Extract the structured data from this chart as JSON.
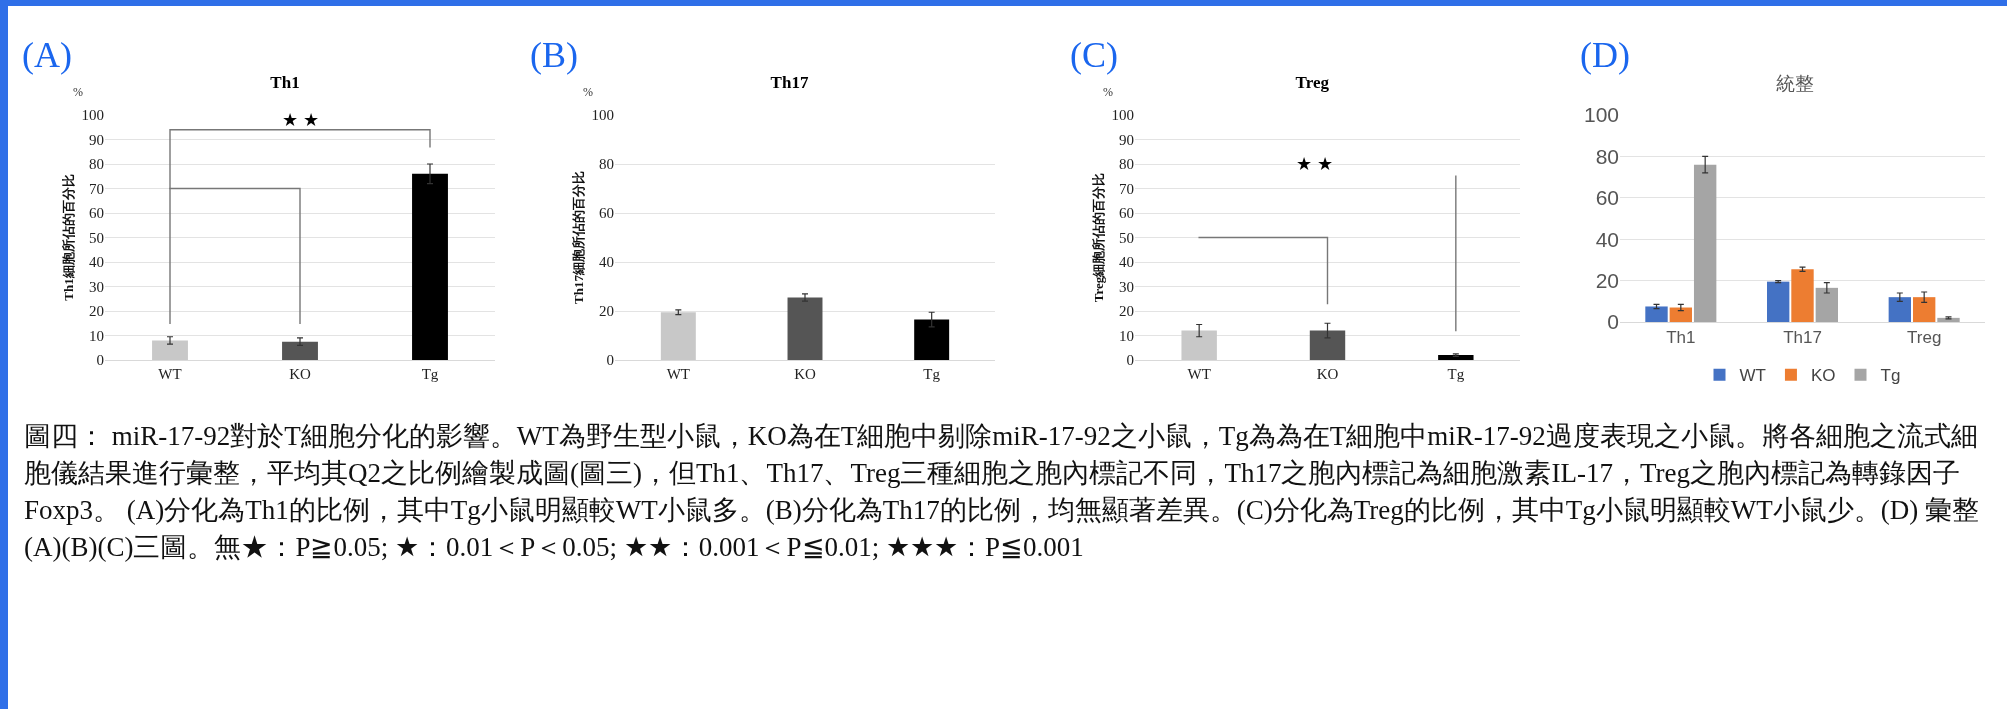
{
  "chart_data": [
    {
      "type": "bar",
      "title": "Th1",
      "ylabel": "Th1細胞所佔的百分比",
      "categories": [
        "WT",
        "KO",
        "Tg"
      ],
      "values": [
        8,
        7.5,
        76
      ],
      "errors": [
        1.5,
        1.5,
        4
      ],
      "colors": [
        "#c8c8c8",
        "#555555",
        "#000000"
      ],
      "ylim": [
        0,
        100
      ],
      "yticks": [
        0,
        10,
        20,
        30,
        40,
        50,
        60,
        70,
        80,
        90,
        100
      ],
      "grid": "y",
      "legend": false,
      "annotations": [
        "(A)",
        "%",
        "★ ★",
        "圖四： miR-17-92對於T細胞分化的影響。WT為野生型小鼠，KO為在T細胞中剔除miR-17-92之小鼠，Tg為為在T細胞中miR-17-92過度表現之小鼠。將各細胞之流式細胞儀結果進行彙整，平均其Q2之比例繪製成圖(圖三)，但Th1、Th17、Treg三種細胞之胞內標記不同，Th17之胞內標記為細胞激素IL-17，Treg之胞內標記為轉錄因子Foxp3。 (A)分化為Th1的比例，其中Tg小鼠明顯較WT小鼠多。(B)分化為Th17的比例，均無顯著差異。(C)分化為Treg的比例，其中Tg小鼠明顯較WT小鼠少。(D) 彙整(A)(B)(C)三圖。無★：P≧0.05; ★：0.01＜P＜0.05; ★★：0.001＜P≦0.01; ★★★：P≦0.001"
      ]
    },
    {
      "type": "bar",
      "title": "Th17",
      "ylabel": "Th17細胞所佔的百分比",
      "categories": [
        "WT",
        "KO",
        "Tg"
      ],
      "values": [
        19.5,
        25.5,
        16.5
      ],
      "errors": [
        1,
        1.5,
        3
      ],
      "colors": [
        "#c8c8c8",
        "#555555",
        "#000000"
      ],
      "ylim": [
        0,
        100
      ],
      "yticks": [
        0,
        20,
        40,
        60,
        80,
        100
      ],
      "grid": "y",
      "legend": false,
      "annotations": [
        "(B)",
        "%"
      ]
    },
    {
      "type": "bar",
      "title": "Treg",
      "ylabel": "Treg細胞所佔的百分比",
      "categories": [
        "WT",
        "KO",
        "Tg"
      ],
      "values": [
        12,
        12,
        2
      ],
      "errors": [
        2.5,
        3,
        0.5
      ],
      "colors": [
        "#c8c8c8",
        "#555555",
        "#000000"
      ],
      "ylim": [
        0,
        100
      ],
      "yticks": [
        0,
        10,
        20,
        30,
        40,
        50,
        60,
        70,
        80,
        90,
        100
      ],
      "grid": "y",
      "legend": false,
      "annotations": [
        "(C)",
        "%",
        "★ ★"
      ]
    },
    {
      "type": "bar",
      "title": "統整",
      "categories": [
        "Th1",
        "Th17",
        "Treg"
      ],
      "ylim": [
        0,
        100
      ],
      "yticks": [
        0,
        20,
        40,
        60,
        80,
        100
      ],
      "grid": "y",
      "legend": "bottom",
      "series": [
        {
          "name": "WT",
          "color": "#4472c4",
          "values": [
            7.5,
            19.5,
            12
          ],
          "errors": [
            1,
            0.5,
            2
          ]
        },
        {
          "name": "KO",
          "color": "#ed7d31",
          "values": [
            7,
            25.5,
            12
          ],
          "errors": [
            1.5,
            1,
            2.5
          ]
        },
        {
          "name": "Tg",
          "color": "#a5a5a5",
          "values": [
            76,
            16.5,
            2
          ],
          "errors": [
            4,
            2.5,
            0.5
          ]
        }
      ],
      "annotations": [
        "(D)"
      ]
    }
  ]
}
